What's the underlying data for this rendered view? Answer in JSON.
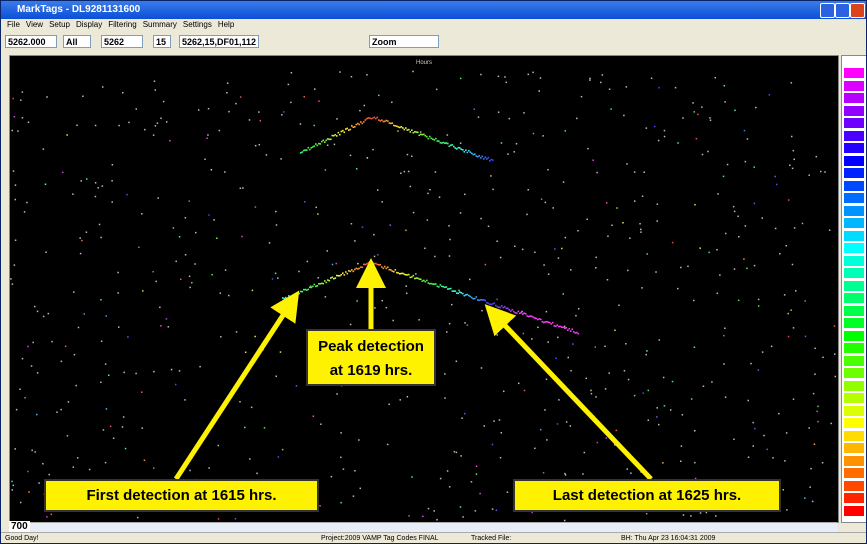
{
  "window": {
    "title": "MarkTags - DL9281131600"
  },
  "menu": [
    "File",
    "View",
    "Setup",
    "Display",
    "Filtering",
    "Summary",
    "Settings",
    "Help"
  ],
  "toolbar": {
    "fields": [
      "5262.000",
      "All",
      "5262",
      "15",
      "5262,15,DF01,112"
    ],
    "zoom": "Zoom"
  },
  "plot": {
    "top_label": "Hours",
    "left_value": "700"
  },
  "annotations": {
    "peak": [
      "Peak detection",
      "at 1619 hrs."
    ],
    "first": "First detection at 1615 hrs.",
    "last": "Last detection at 1625 hrs."
  },
  "status": [
    "Good Day!",
    "Project:2009 VAMP Tag Codes FINAL",
    "Tracked File:",
    "BH: Thu Apr 23 16:04:31 2009"
  ]
}
